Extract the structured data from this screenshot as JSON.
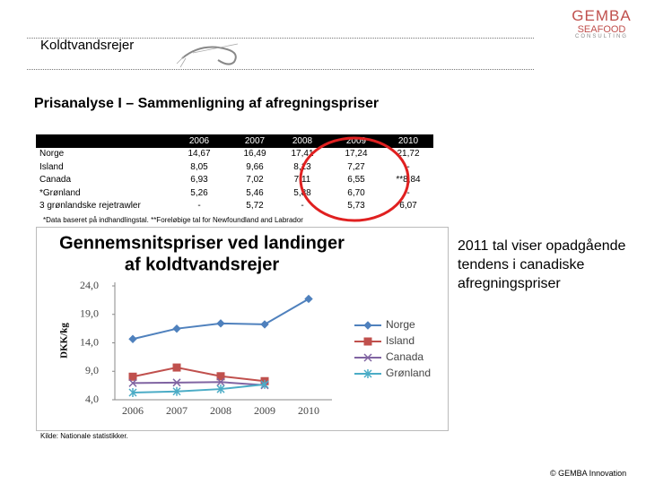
{
  "header": {
    "topic": "Koldtvandsrejer",
    "logo": [
      "GEMBA",
      "SEAFOOD",
      "CONSULTING"
    ]
  },
  "title": "Prisanalyse I – Sammenligning af afregningspriser",
  "table": {
    "columns": [
      "2006",
      "2007",
      "2008",
      "2009",
      "2010"
    ],
    "rows": [
      [
        "Norge",
        "14,67",
        "16,49",
        "17,41",
        "17,24",
        "21,72"
      ],
      [
        "Island",
        "8,05",
        "9,66",
        "8,13",
        "7,27",
        "-"
      ],
      [
        "Canada",
        "6,93",
        "7,02",
        "7,11",
        "6,55",
        "**8,84"
      ],
      [
        "*Grønland",
        "5,26",
        "5,46",
        "5,88",
        "6,70",
        "-"
      ],
      [
        "3 grønlandske rejetrawler",
        "-",
        "5,72",
        "-",
        "5,73",
        "6,07"
      ]
    ],
    "footnote": "*Data baseret på indhandlingstal. **Foreløbige tal for Newfoundland and Labrador"
  },
  "chart_data": {
    "type": "line",
    "title": [
      "Gennemsnitspriser ved landinger",
      "af koldtvandsrejer"
    ],
    "y_label": "DKK/kg",
    "categories": [
      "2006",
      "2007",
      "2008",
      "2009",
      "2010"
    ],
    "series": [
      {
        "name": "Norge",
        "color": "#4f81bd",
        "marker": "diamond",
        "values": [
          14.67,
          16.49,
          17.41,
          17.24,
          21.72
        ]
      },
      {
        "name": "Island",
        "color": "#c0504d",
        "marker": "square",
        "values": [
          8.05,
          9.66,
          8.13,
          7.27,
          null
        ]
      },
      {
        "name": "Canada",
        "color": "#8064a2",
        "marker": "x",
        "values": [
          6.93,
          7.02,
          7.11,
          6.55,
          null
        ]
      },
      {
        "name": "Grønland",
        "color": "#4bacc6",
        "marker": "star",
        "values": [
          5.26,
          5.46,
          5.88,
          6.7,
          null
        ]
      }
    ],
    "ylim": [
      4,
      24
    ],
    "yticks": [
      {
        "value": 4,
        "label": "4,0"
      },
      {
        "value": 9,
        "label": "9,0"
      },
      {
        "value": 14,
        "label": "14,0"
      },
      {
        "value": 19,
        "label": "19,0"
      },
      {
        "value": 24,
        "label": "24,0"
      }
    ],
    "legend": "right"
  },
  "comment": "2011 tal viser opadgående tendens i canadiske afregningspriser",
  "source": "Kilde: Nationale statistikker.",
  "footer": "© GEMBA Innovation"
}
